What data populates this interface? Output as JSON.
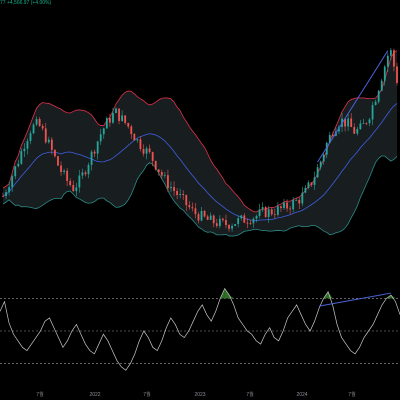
{
  "header": {
    "price_change": "77 +4,566.97 (+4.00%)"
  },
  "colors": {
    "background": "#000000",
    "bullish": "#26a69a",
    "bearish": "#ef5350",
    "band_upper": "#e0314b",
    "band_lower": "#2b8a86",
    "band_basis": "#3f5fe0",
    "band_fill": "#1c2226",
    "trendline": "#4a63d8",
    "rsi_line": "#c8c8c8",
    "rsi_fill_overbought": "#3b8b2e",
    "rsi_levels": "#9a9a9a",
    "axis_text": "#8b8f98"
  },
  "chart_data": [
    {
      "type": "candlestick",
      "panel": "price",
      "indicator": "Bollinger Bands",
      "x_tick_labels": [
        "7월",
        "2022",
        "7월",
        "2023",
        "7월",
        "2024",
        "7월"
      ],
      "series": [
        {
          "values": [
            22,
            30,
            38,
            48,
            56,
            58,
            52,
            44,
            36,
            30,
            26,
            30,
            38,
            46,
            54,
            60,
            64,
            60,
            56,
            50,
            46,
            42,
            36,
            30,
            26,
            22,
            18,
            14,
            12,
            10,
            9,
            8,
            8,
            9,
            10,
            11,
            12,
            14,
            14,
            15,
            16,
            18,
            20,
            24,
            30,
            38,
            48,
            56,
            60,
            58,
            54,
            56,
            62,
            72,
            84,
            96,
            80
          ]
        }
      ],
      "trendlines": 1,
      "y_range": [
        0,
        100
      ]
    },
    {
      "type": "line",
      "panel": "indicator",
      "indicator": "RSI",
      "series": [
        {
          "values": [
            62,
            68,
            55,
            48,
            44,
            40,
            38,
            42,
            46,
            50,
            56,
            58,
            52,
            46,
            40,
            44,
            50,
            54,
            48,
            42,
            38,
            36,
            42,
            48,
            44,
            38,
            32,
            28,
            26,
            30,
            36,
            44,
            50,
            46,
            40,
            38,
            44,
            52,
            58,
            54,
            48,
            46,
            50,
            56,
            62,
            66,
            60,
            56,
            62,
            70,
            76,
            72,
            66,
            58,
            54,
            50,
            48,
            44,
            42,
            48,
            52,
            46,
            44,
            50,
            58,
            62,
            66,
            60,
            54,
            50,
            56,
            64,
            70,
            74,
            66,
            54,
            46,
            42,
            38,
            36,
            40,
            46,
            50,
            54,
            60,
            66,
            70,
            72,
            68,
            60
          ]
        }
      ],
      "levels": [
        70,
        50,
        30
      ],
      "y_range": [
        20,
        80
      ]
    }
  ]
}
